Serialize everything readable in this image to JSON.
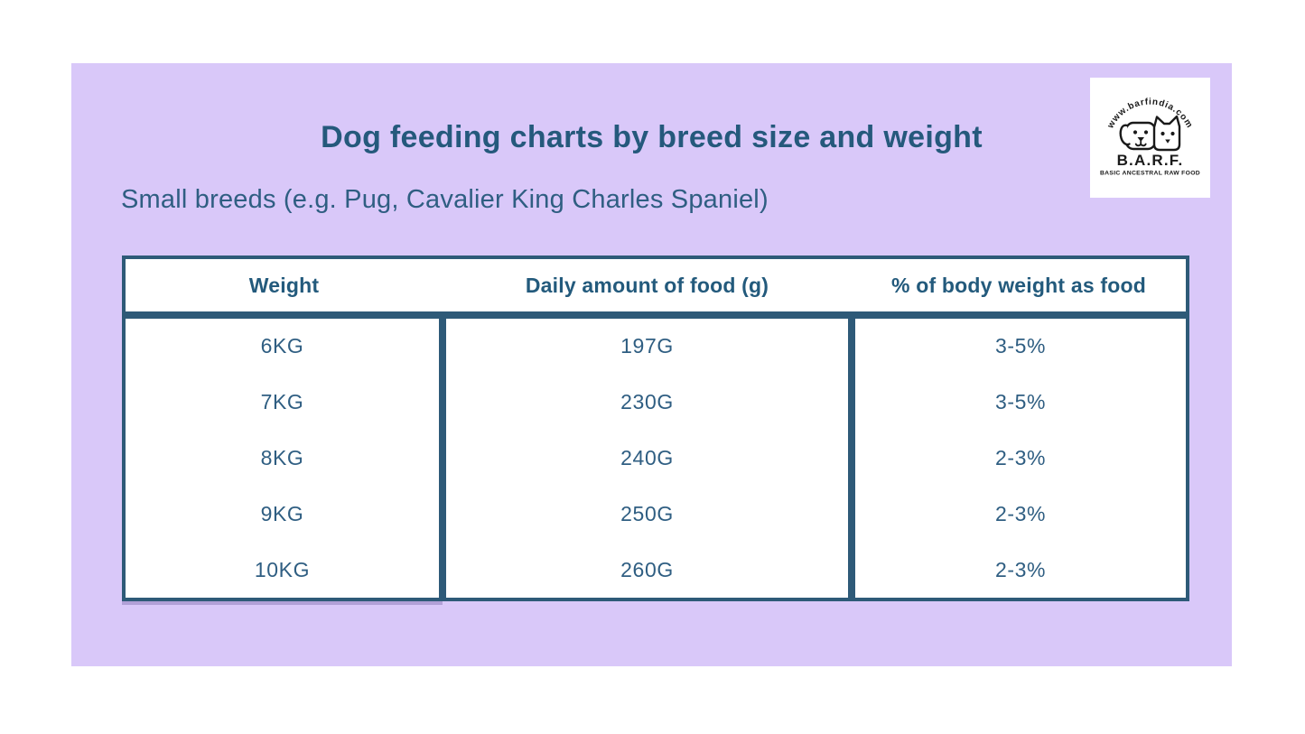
{
  "page": {
    "background_color": "#ffffff",
    "panel_color": "#d9c8f9",
    "accent_color": "#25597c",
    "border_color": "#2e5a78"
  },
  "header": {
    "title": "Dog feeding charts by breed size and weight",
    "subtitle": "Small breeds (e.g. Pug, Cavalier King Charles Spaniel)"
  },
  "logo": {
    "website": "www.barfindia.com",
    "name": "B.A.R.F.",
    "tagline": "BASIC ANCESTRAL RAW FOOD",
    "icon": "dog-and-cat-icon"
  },
  "chart_data": {
    "type": "table",
    "title": "Dog feeding charts by breed size and weight",
    "subtitle": "Small breeds (e.g. Pug, Cavalier King Charles Spaniel)",
    "columns": [
      "Weight",
      "Daily amount of food (g)",
      "% of body weight as food"
    ],
    "rows": [
      [
        "6KG",
        "197G",
        "3-5%"
      ],
      [
        "7KG",
        "230G",
        "3-5%"
      ],
      [
        "8KG",
        "240G",
        "2-3%"
      ],
      [
        "9KG",
        "250G",
        "2-3%"
      ],
      [
        "10KG",
        "260G",
        "2-3%"
      ]
    ]
  }
}
